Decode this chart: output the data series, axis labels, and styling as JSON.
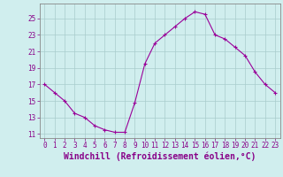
{
  "x": [
    0,
    1,
    2,
    3,
    4,
    5,
    6,
    7,
    8,
    9,
    10,
    11,
    12,
    13,
    14,
    15,
    16,
    17,
    18,
    19,
    20,
    21,
    22,
    23
  ],
  "y": [
    17,
    16,
    15,
    13.5,
    13,
    12,
    11.5,
    11.2,
    11.2,
    14.8,
    19.5,
    22,
    23,
    24,
    25,
    25.8,
    25.5,
    23,
    22.5,
    21.5,
    20.5,
    18.5,
    17,
    16
  ],
  "line_color": "#990099",
  "marker": "+",
  "marker_size": 3,
  "marker_linewidth": 0.8,
  "bg_color": "#d0eeee",
  "grid_color": "#a8cccc",
  "xlabel": "Windchill (Refroidissement éolien,°C)",
  "xlabel_fontsize": 7,
  "yticks": [
    11,
    13,
    15,
    17,
    19,
    21,
    23,
    25
  ],
  "xticks": [
    0,
    1,
    2,
    3,
    4,
    5,
    6,
    7,
    8,
    9,
    10,
    11,
    12,
    13,
    14,
    15,
    16,
    17,
    18,
    19,
    20,
    21,
    22,
    23
  ],
  "ylim": [
    10.5,
    26.8
  ],
  "xlim": [
    -0.5,
    23.5
  ],
  "tick_color": "#880088",
  "tick_fontsize": 5.5,
  "spine_color": "#888888",
  "linewidth": 0.8
}
